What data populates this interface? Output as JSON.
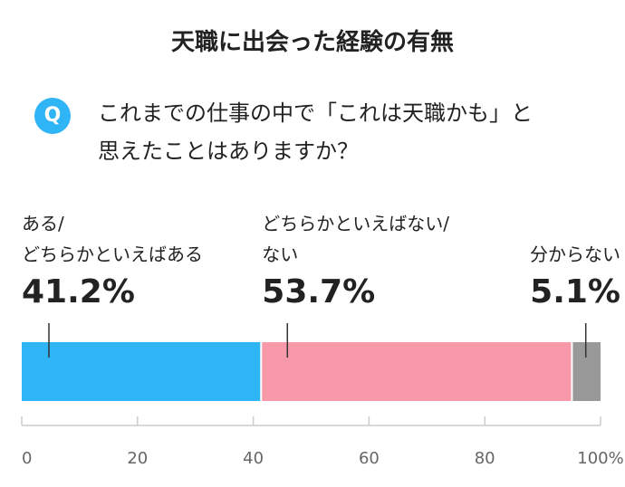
{
  "chart_data": {
    "type": "stacked-bar",
    "title": "天職に出会った経験の有無",
    "badge": "Q",
    "subtitle": "これまでの仕事の中で「これは天職かも」と\n思えたことはありますか？",
    "categories": [
      "ある/\nどちらかといえばある",
      "どちらかといえばない/\nない",
      "分からない"
    ],
    "values": [
      41.2,
      53.7,
      5.1
    ],
    "value_labels": [
      "41.2%",
      "53.7%",
      "5.1%"
    ],
    "colors": [
      "#2fb4f5",
      "#f799a8",
      "#999999"
    ],
    "xlim": [
      0,
      100
    ],
    "xticks": [
      0,
      20,
      40,
      60,
      80,
      {
        "value": 100,
        "label": "100%"
      }
    ]
  }
}
